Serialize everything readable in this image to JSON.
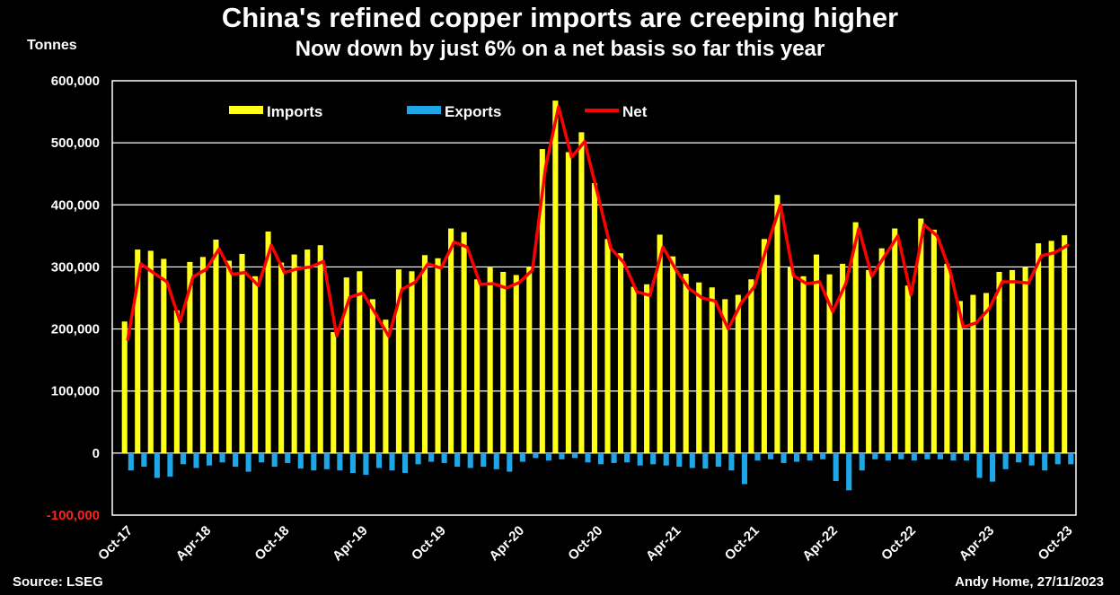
{
  "title": "China's refined copper imports are creeping higher",
  "subtitle": "Now down by just 6% on a net basis so far this year",
  "source": "Source: LSEG",
  "credit": "Andy Home, 27/11/2023",
  "colors": {
    "background": "#000000",
    "imports": "#ffff1a",
    "exports": "#1ea7e8",
    "net": "#ff0000",
    "grid": "#ffffff",
    "negative_tick": "#ff2020"
  },
  "chart_data": {
    "type": "bar",
    "title": "China's refined copper imports are creeping higher",
    "subtitle": "Now down by just 6% on a net basis so far this year",
    "ylabel": "Tonnes",
    "xlabel": "",
    "ylim": [
      -100000,
      600000
    ],
    "yticks": [
      600000,
      500000,
      400000,
      300000,
      200000,
      100000,
      0,
      -100000
    ],
    "ytick_labels": [
      "600,000",
      "500,000",
      "400,000",
      "300,000",
      "200,000",
      "100,000",
      "0",
      "-100,000"
    ],
    "grid": true,
    "legend_position": "top",
    "x_tick_labels": [
      {
        "index": 0,
        "label": "Oct-17"
      },
      {
        "index": 6,
        "label": "Apr-18"
      },
      {
        "index": 12,
        "label": "Oct-18"
      },
      {
        "index": 18,
        "label": "Apr-19"
      },
      {
        "index": 24,
        "label": "Oct-19"
      },
      {
        "index": 30,
        "label": "Apr-20"
      },
      {
        "index": 36,
        "label": "Oct-20"
      },
      {
        "index": 42,
        "label": "Apr-21"
      },
      {
        "index": 48,
        "label": "Oct-21"
      },
      {
        "index": 54,
        "label": "Apr-22"
      },
      {
        "index": 60,
        "label": "Oct-22"
      },
      {
        "index": 66,
        "label": "Apr-23"
      },
      {
        "index": 72,
        "label": "Oct-23"
      }
    ],
    "categories": [
      "Oct-17",
      "Nov-17",
      "Dec-17",
      "Jan-18",
      "Feb-18",
      "Mar-18",
      "Apr-18",
      "May-18",
      "Jun-18",
      "Jul-18",
      "Aug-18",
      "Sep-18",
      "Oct-18",
      "Nov-18",
      "Dec-18",
      "Jan-19",
      "Feb-19",
      "Mar-19",
      "Apr-19",
      "May-19",
      "Jun-19",
      "Jul-19",
      "Aug-19",
      "Sep-19",
      "Oct-19",
      "Nov-19",
      "Dec-19",
      "Jan-20",
      "Feb-20",
      "Mar-20",
      "Apr-20",
      "May-20",
      "Jun-20",
      "Jul-20",
      "Aug-20",
      "Sep-20",
      "Oct-20",
      "Nov-20",
      "Dec-20",
      "Jan-21",
      "Feb-21",
      "Mar-21",
      "Apr-21",
      "May-21",
      "Jun-21",
      "Jul-21",
      "Aug-21",
      "Sep-21",
      "Oct-21",
      "Nov-21",
      "Dec-21",
      "Jan-22",
      "Feb-22",
      "Mar-22",
      "Apr-22",
      "May-22",
      "Jun-22",
      "Jul-22",
      "Aug-22",
      "Sep-22",
      "Oct-22",
      "Nov-22",
      "Dec-22",
      "Jan-23",
      "Feb-23",
      "Mar-23",
      "Apr-23",
      "May-23",
      "Jun-23",
      "Jul-23",
      "Aug-23",
      "Sep-23",
      "Oct-23"
    ],
    "series": [
      {
        "name": "Imports",
        "type": "bar",
        "values": [
          212000,
          328000,
          326000,
          313000,
          230000,
          308000,
          316000,
          344000,
          310000,
          321000,
          285000,
          357000,
          307000,
          320000,
          328000,
          335000,
          195000,
          283000,
          293000,
          248000,
          215000,
          296000,
          293000,
          319000,
          314000,
          362000,
          356000,
          280000,
          299000,
          292000,
          287000,
          300000,
          490000,
          568000,
          485000,
          517000,
          435000,
          345000,
          322000,
          268000,
          272000,
          352000,
          317000,
          289000,
          275000,
          267000,
          248000,
          255000,
          280000,
          345000,
          416000,
          300000,
          285000,
          320000,
          288000,
          305000,
          372000,
          295000,
          330000,
          362000,
          270000,
          378000,
          360000,
          305000,
          245000,
          255000,
          258000,
          292000,
          295000,
          300000,
          338000,
          342000,
          351000
        ]
      },
      {
        "name": "Exports",
        "type": "bar",
        "values": [
          -28000,
          -22000,
          -40000,
          -38000,
          -18000,
          -24000,
          -20000,
          -15000,
          -22000,
          -30000,
          -15000,
          -22000,
          -16000,
          -25000,
          -28000,
          -26000,
          -28000,
          -32000,
          -35000,
          -24000,
          -28000,
          -32000,
          -18000,
          -14000,
          -16000,
          -22000,
          -24000,
          -22000,
          -26000,
          -30000,
          -14000,
          -8000,
          -12000,
          -10000,
          -8000,
          -15000,
          -18000,
          -16000,
          -15000,
          -20000,
          -18000,
          -20000,
          -22000,
          -24000,
          -25000,
          -22000,
          -28000,
          -50000,
          -12000,
          -10000,
          -16000,
          -14000,
          -12000,
          -10000,
          -45000,
          -60000,
          -28000,
          -10000,
          -12000,
          -10000,
          -12000,
          -10000,
          -10000,
          -12000,
          -12000,
          -40000,
          -46000,
          -26000,
          -15000,
          -20000,
          -28000,
          -18000,
          -18000
        ]
      },
      {
        "name": "Net",
        "type": "line",
        "values": [
          183000,
          305000,
          290000,
          276000,
          212000,
          284000,
          296000,
          329000,
          288000,
          291000,
          270000,
          335000,
          291000,
          297000,
          300000,
          309000,
          189000,
          251000,
          258000,
          224000,
          188000,
          264000,
          275000,
          305000,
          298000,
          340000,
          332000,
          272000,
          273000,
          266000,
          275000,
          295000,
          460000,
          558000,
          477000,
          502000,
          417000,
          330000,
          307000,
          260000,
          254000,
          332000,
          295000,
          265000,
          250000,
          245000,
          200000,
          242000,
          268000,
          335000,
          400000,
          286000,
          273000,
          276000,
          228000,
          273000,
          362000,
          285000,
          318000,
          350000,
          255000,
          368000,
          350000,
          293000,
          203000,
          210000,
          233000,
          276000,
          276000,
          274000,
          318000,
          323000,
          335000
        ]
      }
    ]
  }
}
